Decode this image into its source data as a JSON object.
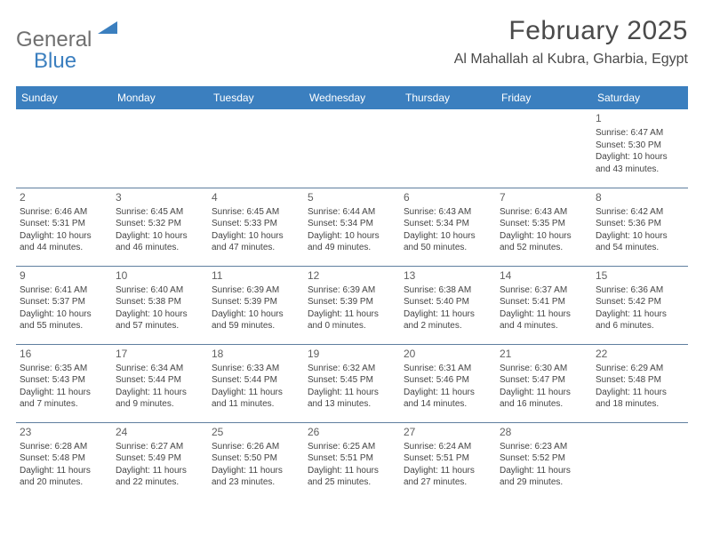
{
  "logo": {
    "text1": "General",
    "text2": "Blue"
  },
  "title": "February 2025",
  "location": "Al Mahallah al Kubra, Gharbia, Egypt",
  "colors": {
    "header_bg": "#3b7fbf",
    "header_fg": "#ffffff",
    "border": "#5f7f9f",
    "text": "#444444",
    "logo_gray": "#6f6f6f",
    "logo_blue": "#3b7fbf"
  },
  "fonts": {
    "title_size": 30,
    "location_size": 16,
    "dayhead_size": 12,
    "cell_size": 10,
    "daynum_size": 12
  },
  "day_headers": [
    "Sunday",
    "Monday",
    "Tuesday",
    "Wednesday",
    "Thursday",
    "Friday",
    "Saturday"
  ],
  "weeks": [
    [
      {},
      {},
      {},
      {},
      {},
      {},
      {
        "n": "1",
        "sunrise": "Sunrise: 6:47 AM",
        "sunset": "Sunset: 5:30 PM",
        "d1": "Daylight: 10 hours",
        "d2": "and 43 minutes."
      }
    ],
    [
      {
        "n": "2",
        "sunrise": "Sunrise: 6:46 AM",
        "sunset": "Sunset: 5:31 PM",
        "d1": "Daylight: 10 hours",
        "d2": "and 44 minutes."
      },
      {
        "n": "3",
        "sunrise": "Sunrise: 6:45 AM",
        "sunset": "Sunset: 5:32 PM",
        "d1": "Daylight: 10 hours",
        "d2": "and 46 minutes."
      },
      {
        "n": "4",
        "sunrise": "Sunrise: 6:45 AM",
        "sunset": "Sunset: 5:33 PM",
        "d1": "Daylight: 10 hours",
        "d2": "and 47 minutes."
      },
      {
        "n": "5",
        "sunrise": "Sunrise: 6:44 AM",
        "sunset": "Sunset: 5:34 PM",
        "d1": "Daylight: 10 hours",
        "d2": "and 49 minutes."
      },
      {
        "n": "6",
        "sunrise": "Sunrise: 6:43 AM",
        "sunset": "Sunset: 5:34 PM",
        "d1": "Daylight: 10 hours",
        "d2": "and 50 minutes."
      },
      {
        "n": "7",
        "sunrise": "Sunrise: 6:43 AM",
        "sunset": "Sunset: 5:35 PM",
        "d1": "Daylight: 10 hours",
        "d2": "and 52 minutes."
      },
      {
        "n": "8",
        "sunrise": "Sunrise: 6:42 AM",
        "sunset": "Sunset: 5:36 PM",
        "d1": "Daylight: 10 hours",
        "d2": "and 54 minutes."
      }
    ],
    [
      {
        "n": "9",
        "sunrise": "Sunrise: 6:41 AM",
        "sunset": "Sunset: 5:37 PM",
        "d1": "Daylight: 10 hours",
        "d2": "and 55 minutes."
      },
      {
        "n": "10",
        "sunrise": "Sunrise: 6:40 AM",
        "sunset": "Sunset: 5:38 PM",
        "d1": "Daylight: 10 hours",
        "d2": "and 57 minutes."
      },
      {
        "n": "11",
        "sunrise": "Sunrise: 6:39 AM",
        "sunset": "Sunset: 5:39 PM",
        "d1": "Daylight: 10 hours",
        "d2": "and 59 minutes."
      },
      {
        "n": "12",
        "sunrise": "Sunrise: 6:39 AM",
        "sunset": "Sunset: 5:39 PM",
        "d1": "Daylight: 11 hours",
        "d2": "and 0 minutes."
      },
      {
        "n": "13",
        "sunrise": "Sunrise: 6:38 AM",
        "sunset": "Sunset: 5:40 PM",
        "d1": "Daylight: 11 hours",
        "d2": "and 2 minutes."
      },
      {
        "n": "14",
        "sunrise": "Sunrise: 6:37 AM",
        "sunset": "Sunset: 5:41 PM",
        "d1": "Daylight: 11 hours",
        "d2": "and 4 minutes."
      },
      {
        "n": "15",
        "sunrise": "Sunrise: 6:36 AM",
        "sunset": "Sunset: 5:42 PM",
        "d1": "Daylight: 11 hours",
        "d2": "and 6 minutes."
      }
    ],
    [
      {
        "n": "16",
        "sunrise": "Sunrise: 6:35 AM",
        "sunset": "Sunset: 5:43 PM",
        "d1": "Daylight: 11 hours",
        "d2": "and 7 minutes."
      },
      {
        "n": "17",
        "sunrise": "Sunrise: 6:34 AM",
        "sunset": "Sunset: 5:44 PM",
        "d1": "Daylight: 11 hours",
        "d2": "and 9 minutes."
      },
      {
        "n": "18",
        "sunrise": "Sunrise: 6:33 AM",
        "sunset": "Sunset: 5:44 PM",
        "d1": "Daylight: 11 hours",
        "d2": "and 11 minutes."
      },
      {
        "n": "19",
        "sunrise": "Sunrise: 6:32 AM",
        "sunset": "Sunset: 5:45 PM",
        "d1": "Daylight: 11 hours",
        "d2": "and 13 minutes."
      },
      {
        "n": "20",
        "sunrise": "Sunrise: 6:31 AM",
        "sunset": "Sunset: 5:46 PM",
        "d1": "Daylight: 11 hours",
        "d2": "and 14 minutes."
      },
      {
        "n": "21",
        "sunrise": "Sunrise: 6:30 AM",
        "sunset": "Sunset: 5:47 PM",
        "d1": "Daylight: 11 hours",
        "d2": "and 16 minutes."
      },
      {
        "n": "22",
        "sunrise": "Sunrise: 6:29 AM",
        "sunset": "Sunset: 5:48 PM",
        "d1": "Daylight: 11 hours",
        "d2": "and 18 minutes."
      }
    ],
    [
      {
        "n": "23",
        "sunrise": "Sunrise: 6:28 AM",
        "sunset": "Sunset: 5:48 PM",
        "d1": "Daylight: 11 hours",
        "d2": "and 20 minutes."
      },
      {
        "n": "24",
        "sunrise": "Sunrise: 6:27 AM",
        "sunset": "Sunset: 5:49 PM",
        "d1": "Daylight: 11 hours",
        "d2": "and 22 minutes."
      },
      {
        "n": "25",
        "sunrise": "Sunrise: 6:26 AM",
        "sunset": "Sunset: 5:50 PM",
        "d1": "Daylight: 11 hours",
        "d2": "and 23 minutes."
      },
      {
        "n": "26",
        "sunrise": "Sunrise: 6:25 AM",
        "sunset": "Sunset: 5:51 PM",
        "d1": "Daylight: 11 hours",
        "d2": "and 25 minutes."
      },
      {
        "n": "27",
        "sunrise": "Sunrise: 6:24 AM",
        "sunset": "Sunset: 5:51 PM",
        "d1": "Daylight: 11 hours",
        "d2": "and 27 minutes."
      },
      {
        "n": "28",
        "sunrise": "Sunrise: 6:23 AM",
        "sunset": "Sunset: 5:52 PM",
        "d1": "Daylight: 11 hours",
        "d2": "and 29 minutes."
      },
      {}
    ]
  ]
}
